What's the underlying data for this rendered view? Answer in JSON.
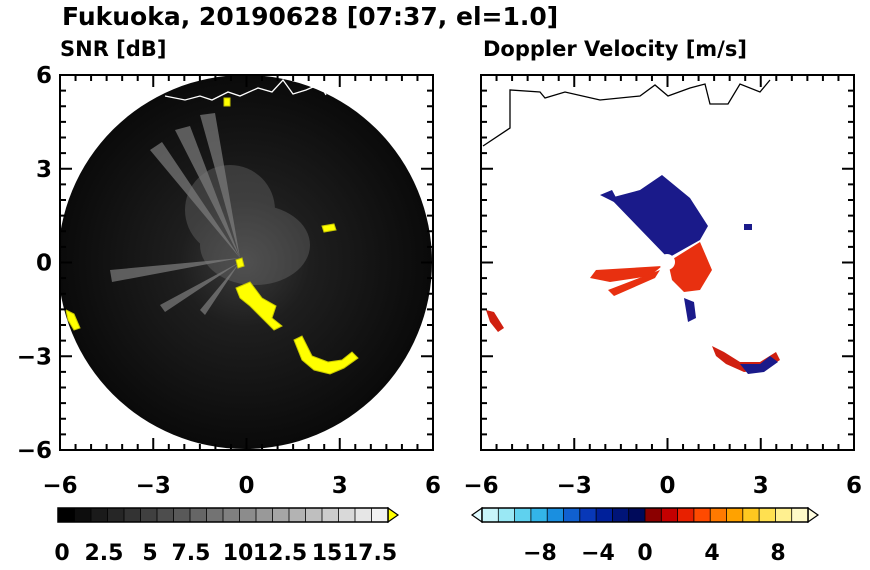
{
  "title": "Fukuoka, 20190628 [07:37, el=1.0]",
  "chart_data": [
    {
      "type": "heatmap",
      "title": "SNR [dB]",
      "x": {
        "ticks": [
          -6,
          -3,
          0,
          3,
          6
        ],
        "range": [
          -6,
          6
        ]
      },
      "y": {
        "ticks": [
          6,
          3,
          0,
          -3,
          -6
        ],
        "range": [
          -6,
          6
        ]
      },
      "colorbar": {
        "ticks": [
          "0",
          "2.5",
          "5",
          "7.5",
          "10",
          "12.5",
          "15",
          "17.5"
        ],
        "range": [
          0,
          20
        ],
        "extend": "max",
        "colors": [
          "#000000",
          "#0d0d0d",
          "#1a1a1a",
          "#262626",
          "#333333",
          "#404040",
          "#4d4d4d",
          "#595959",
          "#666666",
          "#737373",
          "#808080",
          "#8c8c8c",
          "#999999",
          "#a6a6a6",
          "#b3b3b3",
          "#bfbfbf",
          "#cccccc",
          "#d9d9d9",
          "#e6e6e6",
          "#f2f2f2"
        ],
        "extend_color": "#ffff00"
      }
    },
    {
      "type": "heatmap",
      "title": "Doppler Velocity [m/s]",
      "x": {
        "ticks": [
          -6,
          -3,
          0,
          3,
          6
        ],
        "range": [
          -6,
          6
        ]
      },
      "y": {
        "ticks": [
          6,
          3,
          0,
          -3,
          -6
        ],
        "range": [
          -6,
          6
        ]
      },
      "colorbar": {
        "ticks": [
          "−8",
          "−4",
          "0",
          "4",
          "8"
        ],
        "range": [
          -10,
          10
        ],
        "extend": "both",
        "colors": [
          "#c8f5fa",
          "#9ae8f4",
          "#5fd1ee",
          "#33b5e8",
          "#1a8fe0",
          "#1060d0",
          "#0838b8",
          "#00209a",
          "#001478",
          "#000a5a",
          "#8b0000",
          "#c40000",
          "#e82000",
          "#ff4a00",
          "#ff7a00",
          "#ffa200",
          "#ffc820",
          "#ffe050",
          "#fff090",
          "#fffac8"
        ],
        "extend_low_color": "#e0fbff",
        "extend_high_color": "#fffde0"
      }
    }
  ]
}
